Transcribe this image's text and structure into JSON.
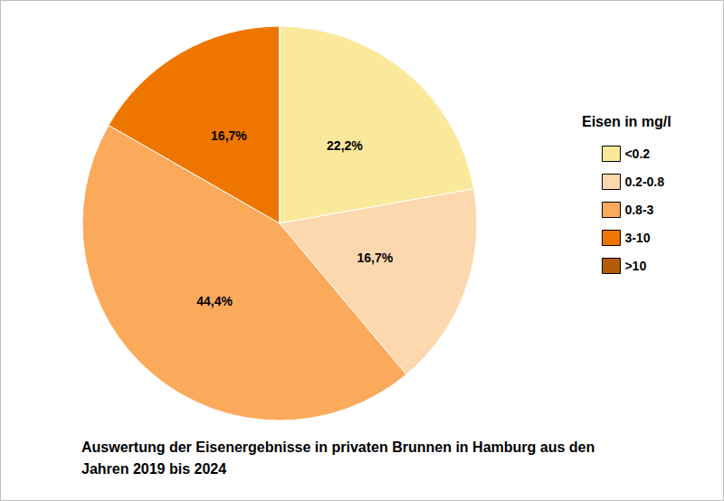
{
  "chart_data": {
    "type": "pie",
    "title": "Auswertung der Eisenergebnisse in privaten Brunnen in Hamburg aus den Jahren 2019 bis 2024",
    "legend_title": "Eisen in mg/l",
    "categories": [
      "<0.2",
      "0.2-0.8",
      "0.8-3",
      "3-10",
      ">10"
    ],
    "values": [
      22.2,
      16.7,
      44.4,
      16.7,
      0
    ],
    "value_labels": [
      "22,2%",
      "16,7%",
      "44,4%",
      "16,7%",
      null
    ],
    "colors": [
      "#fae99a",
      "#fdd7ae",
      "#fbaa5c",
      "#ee7600",
      "#b35c0a"
    ],
    "data_labels": true,
    "legend": "right"
  }
}
